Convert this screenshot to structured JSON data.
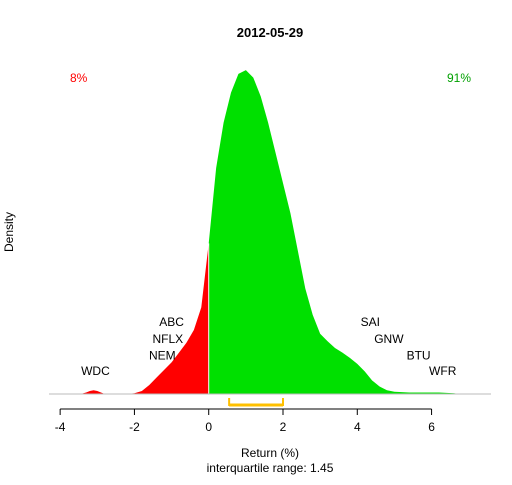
{
  "chart_data": {
    "type": "area",
    "title": "2012-05-29",
    "xlabel": "Return (%)",
    "ylabel": "Density",
    "subtitle": "interquartile range: 1.45",
    "xlim": [
      -4.3,
      7.6
    ],
    "ylim": [
      0,
      0.45
    ],
    "x_ticks": [
      -4,
      -2,
      0,
      2,
      4,
      6
    ],
    "split_at": 0,
    "series": [
      {
        "name": "8%",
        "color": "#ff0000",
        "side": "negative"
      },
      {
        "name": "91%",
        "color": "#00e000",
        "side": "positive"
      }
    ],
    "density": {
      "x": [
        -3.45,
        -3.3,
        -3.2,
        -3.1,
        -3.0,
        -2.9,
        -2.8,
        -2.6,
        -2.2,
        -2.0,
        -1.8,
        -1.6,
        -1.4,
        -1.2,
        -1.0,
        -0.8,
        -0.6,
        -0.4,
        -0.2,
        0.0,
        0.2,
        0.4,
        0.6,
        0.8,
        1.0,
        1.2,
        1.4,
        1.6,
        1.8,
        2.0,
        2.2,
        2.4,
        2.6,
        2.8,
        3.0,
        3.2,
        3.4,
        3.6,
        3.8,
        4.0,
        4.2,
        4.4,
        4.6,
        4.8,
        5.0,
        5.4,
        5.8,
        6.2,
        6.6,
        6.75
      ],
      "y": [
        0.0,
        0.002,
        0.004,
        0.005,
        0.004,
        0.002,
        0.0,
        0.0,
        0.0,
        0.001,
        0.004,
        0.012,
        0.022,
        0.032,
        0.042,
        0.055,
        0.068,
        0.085,
        0.115,
        0.2,
        0.3,
        0.36,
        0.4,
        0.425,
        0.43,
        0.42,
        0.395,
        0.36,
        0.32,
        0.28,
        0.24,
        0.19,
        0.14,
        0.105,
        0.08,
        0.07,
        0.061,
        0.055,
        0.048,
        0.04,
        0.03,
        0.018,
        0.01,
        0.005,
        0.003,
        0.002,
        0.002,
        0.002,
        0.001,
        0.0
      ]
    },
    "interquartile_range": [
      0.55,
      2.0
    ],
    "annotations": [
      {
        "text": "WDC",
        "x": -3.05,
        "y": 0.025
      },
      {
        "text": "ABC",
        "x": -1.0,
        "y": 0.09
      },
      {
        "text": "NFLX",
        "x": -1.1,
        "y": 0.068
      },
      {
        "text": "NEM",
        "x": -1.25,
        "y": 0.046
      },
      {
        "text": "SAI",
        "x": 4.35,
        "y": 0.09
      },
      {
        "text": "GNW",
        "x": 4.85,
        "y": 0.068
      },
      {
        "text": "BTU",
        "x": 5.65,
        "y": 0.046
      },
      {
        "text": "WFR",
        "x": 6.3,
        "y": 0.025
      }
    ],
    "grid": false,
    "legend": "top-left and top-right corner percentages"
  }
}
